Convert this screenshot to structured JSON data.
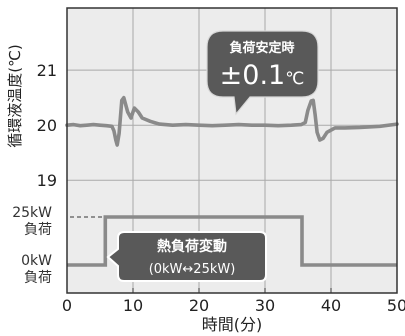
{
  "chart_data": {
    "type": "line",
    "xlabel": "時間(分)",
    "ylabel": "循環液温度(℃)",
    "xlim": [
      0,
      50
    ],
    "x_ticks": [
      0,
      10,
      20,
      30,
      40,
      50
    ],
    "grid": true,
    "temperature": {
      "ylim": [
        16.95,
        22.13
      ],
      "ticks": [
        21,
        20,
        19
      ],
      "points": [
        [
          0,
          20.0
        ],
        [
          1,
          20.01
        ],
        [
          2,
          19.99
        ],
        [
          3,
          20.0
        ],
        [
          4,
          20.01
        ],
        [
          5,
          20.0
        ],
        [
          6,
          19.99
        ],
        [
          6.8,
          19.98
        ],
        [
          7.1,
          19.9
        ],
        [
          7.4,
          19.73
        ],
        [
          7.6,
          19.64
        ],
        [
          7.9,
          19.85
        ],
        [
          8.3,
          20.45
        ],
        [
          8.6,
          20.5
        ],
        [
          9.2,
          20.24
        ],
        [
          9.7,
          20.13
        ],
        [
          10.2,
          20.31
        ],
        [
          10.8,
          20.24
        ],
        [
          11.4,
          20.13
        ],
        [
          12.6,
          20.07
        ],
        [
          14,
          20.02
        ],
        [
          16,
          20.0
        ],
        [
          18,
          20.01
        ],
        [
          20,
          20.0
        ],
        [
          22,
          19.99
        ],
        [
          24,
          20.0
        ],
        [
          26,
          20.01
        ],
        [
          28,
          20.0
        ],
        [
          30,
          20.0
        ],
        [
          32,
          19.99
        ],
        [
          34,
          20.0
        ],
        [
          35.5,
          20.01
        ],
        [
          36.1,
          20.05
        ],
        [
          36.5,
          20.27
        ],
        [
          37.0,
          20.44
        ],
        [
          37.3,
          20.45
        ],
        [
          37.6,
          20.18
        ],
        [
          37.9,
          19.87
        ],
        [
          38.3,
          19.73
        ],
        [
          38.8,
          19.76
        ],
        [
          39.4,
          19.87
        ],
        [
          40.6,
          19.95
        ],
        [
          42.1,
          19.95
        ],
        [
          44.4,
          19.96
        ],
        [
          47.4,
          19.98
        ],
        [
          50,
          20.02
        ]
      ]
    },
    "load": {
      "ticks": [
        25,
        0
      ],
      "tick_labels": [
        [
          "25kW",
          "負荷"
        ],
        [
          "0kW",
          "負荷"
        ]
      ],
      "points": [
        [
          0,
          0
        ],
        [
          5.8,
          0
        ],
        [
          5.8,
          25
        ],
        [
          35.6,
          25
        ],
        [
          35.6,
          0
        ],
        [
          50,
          0
        ]
      ]
    },
    "annotations": [
      {
        "title": "負荷安定時",
        "value": "±0.1",
        "unit": "℃"
      },
      {
        "title": "熱負荷変動",
        "detail": "(0kW↔25kW)"
      }
    ]
  },
  "colors": {
    "plot_background": "#ececec",
    "series_line": "#8a8a8a",
    "grid": "#a9a9a9",
    "axis": "#333333",
    "annotation_fill": "#595959",
    "annotation_outline": "#ffffff",
    "text": "#222222"
  }
}
